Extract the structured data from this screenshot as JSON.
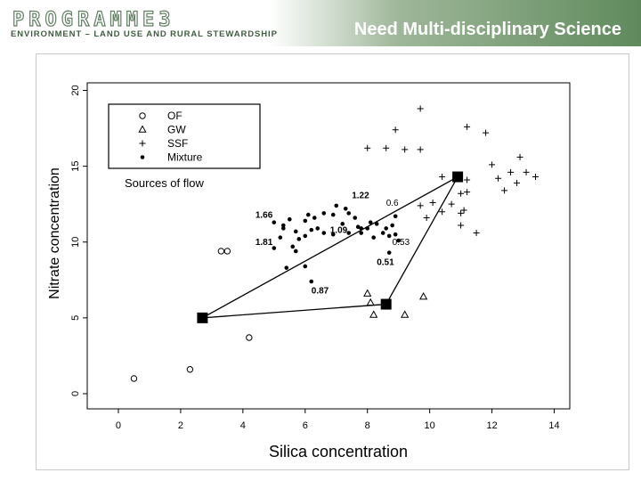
{
  "header": {
    "logo_word": "PROGRAMME3",
    "logo_tagline": "ENVIRONMENT – LAND USE AND RURAL STEWARDSHIP",
    "title": "Need Multi-disciplinary Science"
  },
  "chart_data": {
    "type": "scatter",
    "xlabel": "Silica concentration",
    "ylabel": "Nitrate concentration",
    "xlim": [
      -1,
      14.5
    ],
    "ylim": [
      -1,
      20.5
    ],
    "x_ticks": [
      0,
      2,
      4,
      6,
      8,
      10,
      12,
      14
    ],
    "y_ticks": [
      0,
      5,
      10,
      15,
      20
    ],
    "grid": false,
    "legend_position": "top-left",
    "annotation": "Sources of flow",
    "series": [
      {
        "name": "OF",
        "marker": "circle",
        "points": [
          [
            0.5,
            1.0
          ],
          [
            2.3,
            1.6
          ],
          [
            3.3,
            9.4
          ],
          [
            3.5,
            9.4
          ],
          [
            4.2,
            3.7
          ]
        ]
      },
      {
        "name": "GW",
        "marker": "triangle",
        "points": [
          [
            8.0,
            6.6
          ],
          [
            8.2,
            5.2
          ],
          [
            8.1,
            6.0
          ],
          [
            9.2,
            5.2
          ],
          [
            9.8,
            6.4
          ]
        ]
      },
      {
        "name": "SSF",
        "marker": "plus",
        "points": [
          [
            9.7,
            18.8
          ],
          [
            11.2,
            17.6
          ],
          [
            11.8,
            17.2
          ],
          [
            8.0,
            16.2
          ],
          [
            8.6,
            16.2
          ],
          [
            9.2,
            16.1
          ],
          [
            8.9,
            17.4
          ],
          [
            9.7,
            16.1
          ],
          [
            12.0,
            15.1
          ],
          [
            12.9,
            15.6
          ],
          [
            12.6,
            14.6
          ],
          [
            13.1,
            14.6
          ],
          [
            12.2,
            14.2
          ],
          [
            12.8,
            13.9
          ],
          [
            12.4,
            13.4
          ],
          [
            13.4,
            14.3
          ],
          [
            11.2,
            14.1
          ],
          [
            11.0,
            13.2
          ],
          [
            11.2,
            13.3
          ],
          [
            10.4,
            14.3
          ],
          [
            9.7,
            12.4
          ],
          [
            10.1,
            12.6
          ],
          [
            10.7,
            12.5
          ],
          [
            11.1,
            12.1
          ],
          [
            11.0,
            11.9
          ],
          [
            10.4,
            12.0
          ],
          [
            9.9,
            11.6
          ],
          [
            11.0,
            11.1
          ],
          [
            11.5,
            10.6
          ]
        ]
      },
      {
        "name": "Mixture",
        "marker": "filled-circle",
        "points": [
          [
            5.0,
            11.3
          ],
          [
            5.2,
            10.3
          ],
          [
            5.0,
            9.6
          ],
          [
            5.3,
            11.1
          ],
          [
            5.3,
            10.9
          ],
          [
            5.5,
            11.5
          ],
          [
            5.7,
            10.7
          ],
          [
            5.6,
            9.7
          ],
          [
            5.4,
            8.3
          ],
          [
            5.7,
            9.4
          ],
          [
            5.8,
            10.2
          ],
          [
            6.0,
            10.4
          ],
          [
            6.0,
            11.4
          ],
          [
            6.1,
            11.8
          ],
          [
            6.3,
            11.6
          ],
          [
            6.2,
            10.8
          ],
          [
            6.4,
            10.9
          ],
          [
            6.6,
            11.9
          ],
          [
            6.6,
            10.6
          ],
          [
            6.9,
            11.8
          ],
          [
            6.9,
            10.5
          ],
          [
            6.2,
            7.4
          ],
          [
            6.0,
            8.4
          ],
          [
            7.0,
            12.4
          ],
          [
            7.3,
            12.2
          ],
          [
            7.4,
            11.9
          ],
          [
            7.2,
            11.2
          ],
          [
            7.4,
            10.6
          ],
          [
            7.6,
            11.6
          ],
          [
            7.7,
            11.0
          ],
          [
            7.8,
            10.9
          ],
          [
            7.8,
            10.6
          ],
          [
            8.0,
            10.9
          ],
          [
            8.1,
            11.3
          ],
          [
            8.2,
            10.3
          ],
          [
            8.3,
            11.2
          ],
          [
            8.5,
            10.6
          ],
          [
            8.6,
            10.9
          ],
          [
            8.7,
            10.4
          ],
          [
            8.8,
            11.1
          ],
          [
            8.9,
            10.5
          ],
          [
            8.9,
            11.7
          ],
          [
            8.7,
            9.3
          ],
          [
            9.0,
            10.1
          ]
        ]
      }
    ],
    "end_members": [
      {
        "x": 2.7,
        "y": 5.0
      },
      {
        "x": 10.9,
        "y": 14.3
      },
      {
        "x": 8.6,
        "y": 5.9
      }
    ],
    "point_labels": [
      {
        "text": "1.22",
        "x": 7.5,
        "y": 12.9
      },
      {
        "text": "0.6",
        "x": 8.6,
        "y": 12.4
      },
      {
        "text": "1.66",
        "x": 4.4,
        "y": 11.6
      },
      {
        "text": "1.09",
        "x": 6.8,
        "y": 10.6
      },
      {
        "text": "1.81",
        "x": 4.4,
        "y": 9.8
      },
      {
        "text": "0.53",
        "x": 8.8,
        "y": 9.8
      },
      {
        "text": "0.51",
        "x": 8.3,
        "y": 8.5
      },
      {
        "text": "0.87",
        "x": 6.2,
        "y": 6.6
      }
    ]
  }
}
